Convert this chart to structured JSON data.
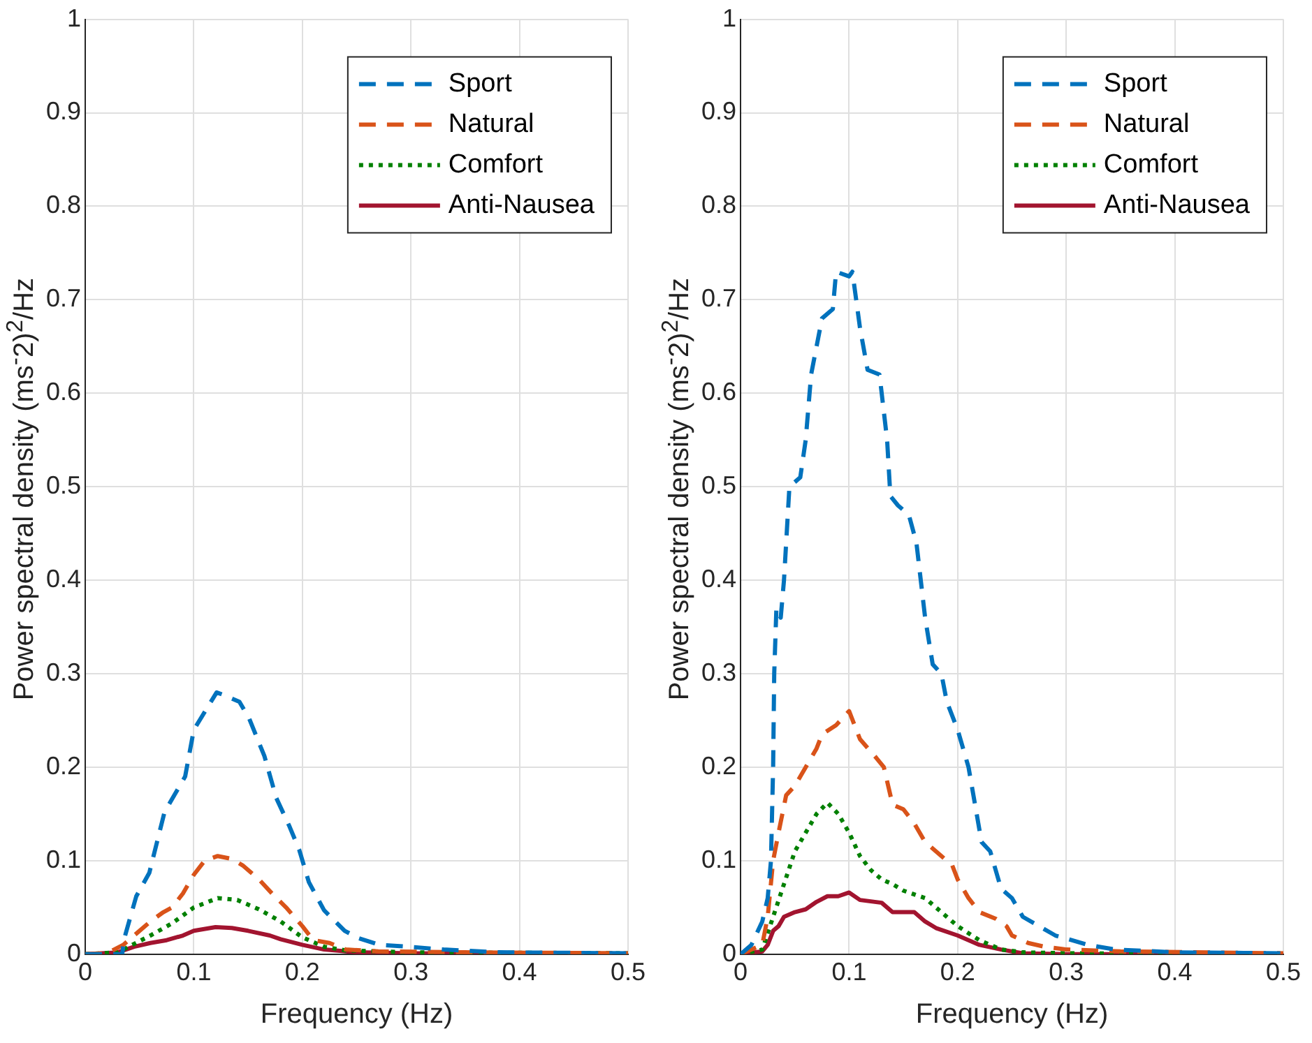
{
  "chart_data": [
    {
      "type": "line",
      "xlabel": "Frequency (Hz)",
      "ylabel": "Power spectral density (ms$^{-}$2)$^{2}$/Hz",
      "xlim": [
        0,
        0.5
      ],
      "xticks": [
        0,
        0.1,
        0.2,
        0.3,
        0.4,
        0.5
      ],
      "ylim": [
        0,
        1
      ],
      "yticks": [
        0,
        0.1,
        0.2,
        0.3,
        0.4,
        0.5,
        0.6,
        0.7,
        0.8,
        0.9,
        1
      ],
      "grid": true,
      "legend": "top right",
      "marker": "none",
      "series": [
        {
          "name": "Sport",
          "color": "#0072bd",
          "line_style": "dashed",
          "x": [
            0,
            0.03,
            0.034,
            0.036,
            0.047,
            0.059,
            0.073,
            0.092,
            0.1,
            0.121,
            0.128,
            0.142,
            0.151,
            0.165,
            0.176,
            0.188,
            0.197,
            0.206,
            0.22,
            0.239,
            0.252,
            0.271,
            0.298,
            0.33,
            0.38,
            0.5
          ],
          "values": [
            0,
            0,
            0,
            0.017,
            0.062,
            0.087,
            0.152,
            0.19,
            0.24,
            0.28,
            0.277,
            0.27,
            0.252,
            0.212,
            0.167,
            0.137,
            0.112,
            0.077,
            0.047,
            0.025,
            0.017,
            0.01,
            0.008,
            0.005,
            0.002,
            0.001
          ]
        },
        {
          "name": "Natural",
          "color": "#d95319",
          "line_style": "dashed",
          "x": [
            0,
            0.02,
            0.035,
            0.045,
            0.06,
            0.072,
            0.08,
            0.09,
            0.1,
            0.11,
            0.122,
            0.135,
            0.145,
            0.16,
            0.172,
            0.185,
            0.2,
            0.21,
            0.225,
            0.24,
            0.27,
            0.35,
            0.5
          ],
          "values": [
            0,
            0.001,
            0.01,
            0.02,
            0.035,
            0.045,
            0.05,
            0.065,
            0.085,
            0.1,
            0.105,
            0.102,
            0.095,
            0.08,
            0.065,
            0.05,
            0.03,
            0.015,
            0.012,
            0.005,
            0.003,
            0.002,
            0.001
          ]
        },
        {
          "name": "Comfort",
          "color": "#008000",
          "line_style": "dotted",
          "x": [
            0,
            0.03,
            0.04,
            0.06,
            0.08,
            0.1,
            0.122,
            0.14,
            0.16,
            0.18,
            0.2,
            0.22,
            0.24,
            0.3,
            0.5
          ],
          "values": [
            0,
            0.002,
            0.008,
            0.02,
            0.033,
            0.05,
            0.06,
            0.058,
            0.048,
            0.035,
            0.018,
            0.008,
            0.004,
            0.002,
            0.001
          ]
        },
        {
          "name": "Anti-Nausea",
          "color": "#a2142f",
          "line_style": "solid",
          "x": [
            0,
            0.03,
            0.045,
            0.06,
            0.075,
            0.09,
            0.1,
            0.12,
            0.135,
            0.15,
            0.17,
            0.18,
            0.2,
            0.22,
            0.25,
            0.3,
            0.5
          ],
          "values": [
            0,
            0.002,
            0.008,
            0.012,
            0.015,
            0.02,
            0.025,
            0.029,
            0.028,
            0.025,
            0.02,
            0.016,
            0.01,
            0.005,
            0.002,
            0.001,
            0
          ]
        }
      ]
    },
    {
      "type": "line",
      "xlabel": "Frequency (Hz)",
      "ylabel": "Power spectral density (ms$^{-}$2)$^{2}$/Hz",
      "xlim": [
        0,
        0.5
      ],
      "xticks": [
        0,
        0.1,
        0.2,
        0.3,
        0.4,
        0.5
      ],
      "ylim": [
        0,
        1
      ],
      "yticks": [
        0,
        0.1,
        0.2,
        0.3,
        0.4,
        0.5,
        0.6,
        0.7,
        0.8,
        0.9,
        1
      ],
      "grid": true,
      "legend": "top right",
      "marker": "none",
      "series": [
        {
          "name": "Sport",
          "color": "#0072bd",
          "line_style": "dashed",
          "x": [
            0,
            0.01,
            0.02,
            0.025,
            0.028,
            0.03,
            0.031,
            0.033,
            0.037,
            0.04,
            0.045,
            0.055,
            0.06,
            0.065,
            0.075,
            0.085,
            0.088,
            0.1,
            0.103,
            0.11,
            0.117,
            0.128,
            0.135,
            0.138,
            0.145,
            0.155,
            0.162,
            0.17,
            0.177,
            0.185,
            0.19,
            0.2,
            0.21,
            0.222,
            0.23,
            0.24,
            0.25,
            0.26,
            0.275,
            0.29,
            0.305,
            0.32,
            0.345,
            0.4,
            0.5
          ],
          "values": [
            0,
            0.01,
            0.035,
            0.06,
            0.1,
            0.2,
            0.3,
            0.37,
            0.36,
            0.4,
            0.5,
            0.51,
            0.55,
            0.62,
            0.68,
            0.69,
            0.73,
            0.725,
            0.73,
            0.67,
            0.625,
            0.62,
            0.55,
            0.49,
            0.48,
            0.47,
            0.44,
            0.36,
            0.31,
            0.3,
            0.27,
            0.24,
            0.2,
            0.12,
            0.11,
            0.07,
            0.06,
            0.04,
            0.03,
            0.02,
            0.015,
            0.01,
            0.005,
            0.002,
            0.001
          ]
        },
        {
          "name": "Natural",
          "color": "#d95319",
          "line_style": "dashed",
          "x": [
            0,
            0.02,
            0.025,
            0.03,
            0.035,
            0.042,
            0.05,
            0.06,
            0.07,
            0.075,
            0.088,
            0.1,
            0.11,
            0.125,
            0.132,
            0.14,
            0.15,
            0.16,
            0.17,
            0.18,
            0.195,
            0.2,
            0.21,
            0.22,
            0.235,
            0.245,
            0.25,
            0.265,
            0.28,
            0.3,
            0.35,
            0.5
          ],
          "values": [
            0,
            0.01,
            0.04,
            0.1,
            0.13,
            0.17,
            0.18,
            0.2,
            0.22,
            0.235,
            0.245,
            0.26,
            0.23,
            0.21,
            0.2,
            0.16,
            0.155,
            0.14,
            0.12,
            0.11,
            0.095,
            0.08,
            0.06,
            0.045,
            0.038,
            0.03,
            0.02,
            0.012,
            0.008,
            0.005,
            0.003,
            0.001
          ]
        },
        {
          "name": "Comfort",
          "color": "#008000",
          "line_style": "dotted",
          "x": [
            0,
            0.02,
            0.03,
            0.04,
            0.05,
            0.06,
            0.07,
            0.08,
            0.09,
            0.1,
            0.11,
            0.12,
            0.13,
            0.14,
            0.15,
            0.17,
            0.18,
            0.2,
            0.22,
            0.24,
            0.26,
            0.3,
            0.5
          ],
          "values": [
            0,
            0.005,
            0.04,
            0.075,
            0.11,
            0.13,
            0.15,
            0.162,
            0.15,
            0.13,
            0.105,
            0.09,
            0.08,
            0.075,
            0.068,
            0.06,
            0.05,
            0.03,
            0.015,
            0.005,
            0.002,
            0.001,
            0
          ]
        },
        {
          "name": "Anti-Nausea",
          "color": "#a2142f",
          "line_style": "solid",
          "x": [
            0,
            0.02,
            0.025,
            0.03,
            0.035,
            0.04,
            0.05,
            0.06,
            0.07,
            0.08,
            0.09,
            0.1,
            0.11,
            0.13,
            0.14,
            0.16,
            0.17,
            0.18,
            0.2,
            0.21,
            0.22,
            0.24,
            0.26,
            0.3,
            0.5
          ],
          "values": [
            0,
            0.003,
            0.01,
            0.025,
            0.03,
            0.04,
            0.045,
            0.048,
            0.056,
            0.062,
            0.062,
            0.066,
            0.058,
            0.055,
            0.045,
            0.045,
            0.035,
            0.028,
            0.02,
            0.015,
            0.01,
            0.005,
            0.001,
            0,
            0
          ]
        }
      ]
    }
  ]
}
